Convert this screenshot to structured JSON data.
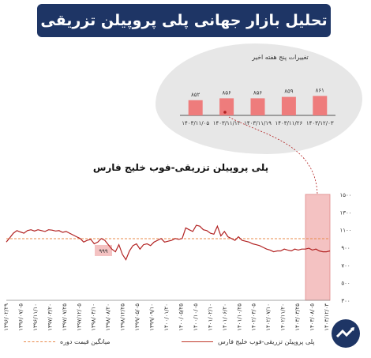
{
  "header": {
    "title": "تحلیل بازار جهانی پلی پروپیلن تزریقی"
  },
  "chart_data": [
    {
      "type": "bar",
      "title": "تغییرات پنج هفته اخیر",
      "categories": [
        "۱۴۰۳/۱۱/۰۵",
        "۱۴۰۳/۱۱/۱۲",
        "۱۴۰۳/۱۱/۱۹",
        "۱۴۰۳/۱۱/۲۶",
        "۱۴۰۳/۱۲/۰۳"
      ],
      "values": [
        852,
        856,
        856,
        859,
        861
      ],
      "value_labels": [
        "۸۵۲",
        "۸۵۶",
        "۸۵۶",
        "۸۵۹",
        "۸۶۱"
      ],
      "ylim": [
        820,
        870
      ],
      "bar_color": "#ee7c7c"
    },
    {
      "type": "line",
      "title": "پلی پروپیلن تزریقی-فوب خلیج فارس",
      "ylim": [
        300,
        1500
      ],
      "y_ticks": [
        300,
        500,
        700,
        900,
        1100,
        1300,
        1500
      ],
      "y_tick_labels": [
        "۳۰۰",
        "۵۰۰",
        "۷۰۰",
        "۹۰۰",
        "۱۱۰۰",
        "۱۳۰۰",
        "۱۵۰۰"
      ],
      "x_tick_labels": [
        "۱۳۹۶/۰۲/۲۹",
        "۱۳۹۶/۰۷/۰۵",
        "۱۳۹۶/۱۱/۱۰",
        "۱۳۹۷/۰۳/۲۰",
        "۱۳۹۷/۰۷/۲۵",
        "۱۳۹۷/۱۲/۰۵",
        "۱۳۹۸/۰۴/۱۰",
        "۱۳۹۸/۰۸/۲۰",
        "۱۳۹۸/۱۲/۲۵",
        "۱۳۹۹/۰۵/۰۵",
        "۱۳۹۹/۰۹/۱۰",
        "۱۴۰۰/۰۱/۲۰",
        "۱۴۰۰/۰۵/۲۵",
        "۱۴۰۰/۱۰/۰۵",
        "۱۴۰۱/۰۲/۱۰",
        "۱۴۰۱/۰۶/۲۰",
        "۱۴۰۱/۱۰/۲۵",
        "۱۴۰۲/۰۳/۰۵",
        "۱۴۰۲/۰۷/۱۰",
        "۱۴۰۲/۱۱/۲۰",
        "۱۴۰۳/۰۳/۲۵",
        "۱۴۰۳/۰۸/۰۵",
        "۱۴۰۳/۱۲/۰۳"
      ],
      "series": [
        {
          "name": "پلی پروپیلن تزریقی-فوب خلیج فارس",
          "color": "#b22222",
          "values": [
            960,
            1010,
            1060,
            1090,
            1075,
            1060,
            1090,
            1100,
            1085,
            1100,
            1090,
            1080,
            1100,
            1095,
            1085,
            1090,
            1070,
            1080,
            1060,
            1040,
            1020,
            1000,
            960,
            980,
            990,
            940,
            960,
            1000,
            980,
            930,
            880,
            850,
            930,
            820,
            760,
            860,
            920,
            940,
            880,
            930,
            940,
            920,
            960,
            980,
            1000,
            960,
            970,
            980,
            1000,
            990,
            1000,
            1120,
            1100,
            1080,
            1150,
            1140,
            1100,
            1090,
            1060,
            1050,
            1140,
            1030,
            1080,
            1020,
            1000,
            980,
            1020,
            980,
            970,
            960,
            940,
            930,
            920,
            900,
            880,
            870,
            850,
            860,
            860,
            880,
            870,
            860,
            880,
            870,
            880,
            880,
            890,
            870,
            880,
            860,
            850,
            850,
            860
          ]
        }
      ],
      "reference_line": {
        "name": "میانگین قیمت دوره",
        "value": 999,
        "color": "#e8894a"
      },
      "annotation_label": "۹۹۹",
      "legend": [
        "پلی پروپیلن تزریقی-فوب خلیج فارس",
        "میانگین قیمت دوره"
      ],
      "highlight_color": "#f4c2c2"
    }
  ]
}
